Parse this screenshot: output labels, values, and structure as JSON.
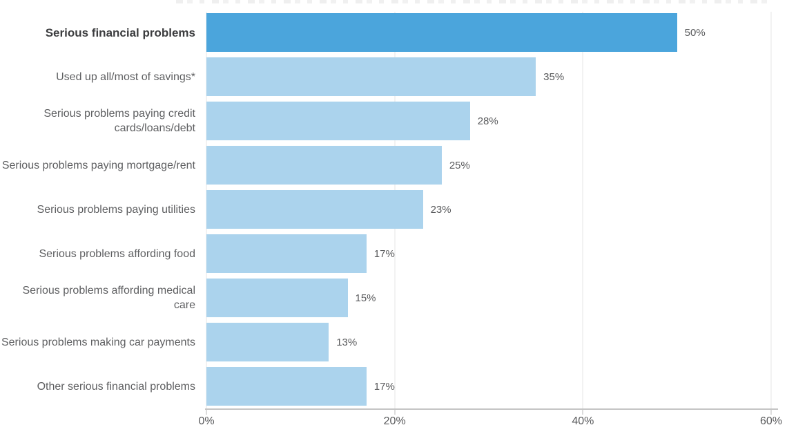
{
  "chart_data": {
    "type": "bar",
    "orientation": "horizontal",
    "categories": [
      "Serious financial problems",
      "Used up all/most of savings*",
      "Serious problems paying credit cards/loans/debt",
      "Serious problems paying mortgage/rent",
      "Serious problems paying utilities",
      "Serious problems affording food",
      "Serious problems affording medical care",
      "Serious problems making car payments",
      "Other serious financial problems"
    ],
    "values": [
      50,
      35,
      28,
      25,
      23,
      17,
      15,
      13,
      17
    ],
    "value_labels": [
      "50%",
      "35%",
      "28%",
      "25%",
      "23%",
      "17%",
      "15%",
      "13%",
      "17%"
    ],
    "highlight_index": 0,
    "xlim": [
      0,
      60
    ],
    "x_ticks": [
      {
        "value": 0,
        "label": "0%"
      },
      {
        "value": 20,
        "label": "20%"
      },
      {
        "value": 40,
        "label": "40%"
      },
      {
        "value": 60,
        "label": "60%"
      }
    ],
    "grid": "vertical-light",
    "legend": "none"
  },
  "colors": {
    "bar_highlight": "#4BA5DC",
    "bar_default": "#ABD3ED",
    "gridline": "#E5E5E5",
    "axis_line": "#C4C4C4",
    "tick": "#B9B9B9",
    "label_text": "#5E5F61",
    "label_text_emphasis": "#3C3D3F",
    "value_text": "#58595B"
  }
}
